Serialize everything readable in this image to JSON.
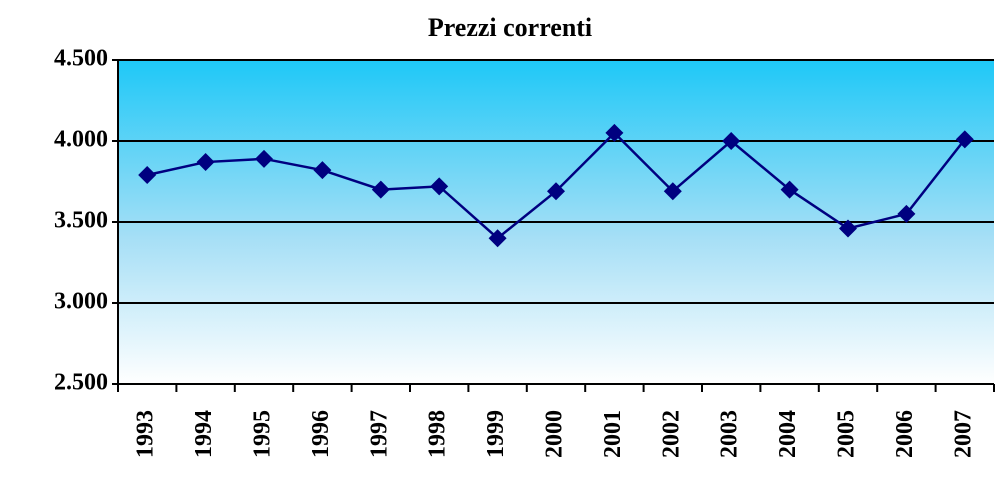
{
  "chart_data": {
    "type": "line",
    "title": "Prezzi correnti",
    "categories": [
      "1993",
      "1994",
      "1995",
      "1996",
      "1997",
      "1998",
      "1999",
      "2000",
      "2001",
      "2002",
      "2003",
      "2004",
      "2005",
      "2006",
      "2007"
    ],
    "series": [
      {
        "name": "Prezzi correnti",
        "color": "#000080",
        "values": [
          3790,
          3870,
          3890,
          3820,
          3700,
          3720,
          3400,
          3690,
          4050,
          3690,
          4000,
          3700,
          3460,
          3550,
          4010
        ]
      }
    ],
    "ylim": [
      2500,
      4500
    ],
    "yticks": [
      {
        "value": 2500,
        "label": "2.500"
      },
      {
        "value": 3000,
        "label": "3.000"
      },
      {
        "value": 3500,
        "label": "3.500"
      },
      {
        "value": 4000,
        "label": "4.000"
      },
      {
        "value": 4500,
        "label": "4.500"
      }
    ],
    "grid": true
  }
}
